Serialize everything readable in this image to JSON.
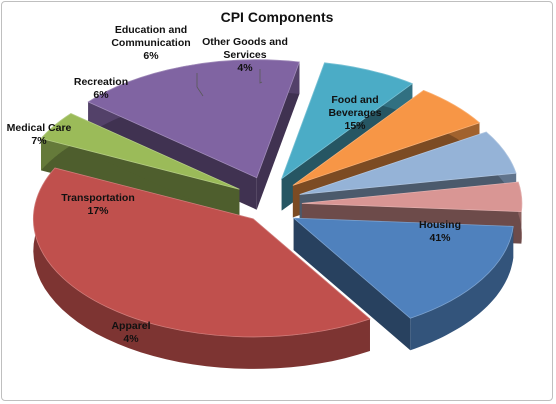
{
  "chart_data": {
    "type": "pie",
    "title": "CPI Components",
    "categories": [
      "Food and Beverages",
      "Housing",
      "Apparel",
      "Transportation",
      "Medical Care",
      "Recreation",
      "Education and Communication",
      "Other Goods and Services"
    ],
    "values": [
      15,
      41,
      4,
      17,
      7,
      6,
      6,
      4
    ],
    "value_labels": [
      "15%",
      "41%",
      "4%",
      "17%",
      "7%",
      "6%",
      "6%",
      "4%"
    ],
    "colors": [
      "#4f81bd",
      "#c0504d",
      "#9bbb59",
      "#8064a2",
      "#4bacc6",
      "#f79646",
      "#95b3d7",
      "#d99694"
    ],
    "style": "exploded 3D pie"
  }
}
